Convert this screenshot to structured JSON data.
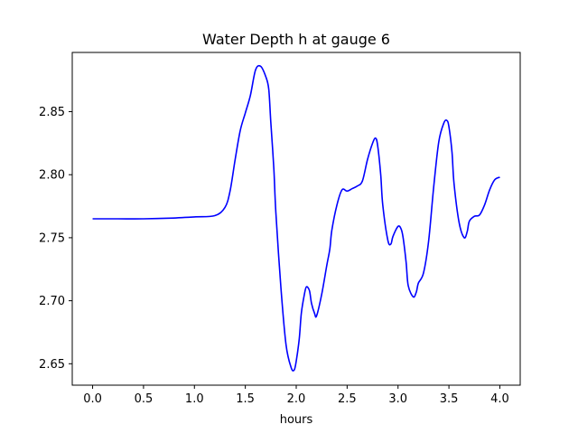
{
  "chart_data": {
    "type": "line",
    "title": "Water Depth h at gauge 6",
    "xlabel": "hours",
    "ylabel": "",
    "xlim": [
      -0.2,
      4.2
    ],
    "ylim": [
      2.633,
      2.897
    ],
    "xticks": [
      0.0,
      0.5,
      1.0,
      1.5,
      2.0,
      2.5,
      3.0,
      3.5,
      4.0
    ],
    "xtick_labels": [
      "0.0",
      "0.5",
      "1.0",
      "1.5",
      "2.0",
      "2.5",
      "3.0",
      "3.5",
      "4.0"
    ],
    "yticks": [
      2.65,
      2.7,
      2.75,
      2.8,
      2.85
    ],
    "ytick_labels": [
      "2.65",
      "2.70",
      "2.75",
      "2.80",
      "2.85"
    ],
    "grid": false,
    "legend": "none",
    "series": [
      {
        "color": "#0000ff",
        "x": [
          0.0,
          0.25,
          0.5,
          0.75,
          1.0,
          1.2,
          1.3,
          1.35,
          1.4,
          1.45,
          1.5,
          1.55,
          1.6,
          1.65,
          1.7,
          1.73,
          1.75,
          1.78,
          1.8,
          1.85,
          1.9,
          1.95,
          1.98,
          2.0,
          2.03,
          2.05,
          2.08,
          2.1,
          2.13,
          2.15,
          2.18,
          2.2,
          2.25,
          2.3,
          2.33,
          2.35,
          2.4,
          2.45,
          2.5,
          2.55,
          2.6,
          2.65,
          2.7,
          2.75,
          2.78,
          2.8,
          2.83,
          2.85,
          2.9,
          2.93,
          2.95,
          3.0,
          3.03,
          3.05,
          3.08,
          3.1,
          3.15,
          3.18,
          3.2,
          3.25,
          3.3,
          3.35,
          3.4,
          3.45,
          3.48,
          3.5,
          3.53,
          3.55,
          3.6,
          3.65,
          3.68,
          3.7,
          3.75,
          3.8,
          3.85,
          3.9,
          3.95,
          4.0
        ],
        "y": [
          2.765,
          2.765,
          2.765,
          2.7655,
          2.7665,
          2.7675,
          2.774,
          2.787,
          2.812,
          2.835,
          2.849,
          2.863,
          2.883,
          2.886,
          2.878,
          2.868,
          2.842,
          2.805,
          2.77,
          2.71,
          2.665,
          2.647,
          2.645,
          2.652,
          2.67,
          2.69,
          2.705,
          2.711,
          2.708,
          2.698,
          2.69,
          2.688,
          2.705,
          2.728,
          2.741,
          2.756,
          2.776,
          2.788,
          2.787,
          2.789,
          2.791,
          2.795,
          2.812,
          2.825,
          2.829,
          2.823,
          2.8,
          2.776,
          2.748,
          2.745,
          2.751,
          2.759,
          2.757,
          2.75,
          2.73,
          2.712,
          2.703,
          2.707,
          2.714,
          2.722,
          2.747,
          2.79,
          2.826,
          2.841,
          2.843,
          2.838,
          2.818,
          2.793,
          2.762,
          2.75,
          2.755,
          2.763,
          2.767,
          2.768,
          2.776,
          2.788,
          2.796,
          2.798
        ]
      }
    ]
  }
}
